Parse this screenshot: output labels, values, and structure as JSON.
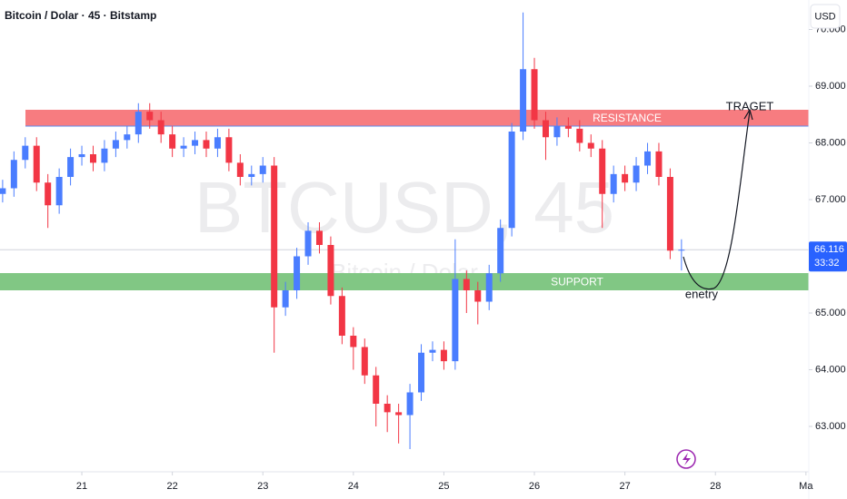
{
  "chart_data": {
    "type": "candlestick",
    "title": "Bitcoin / Dolar · 45 · Bitstamp",
    "currency": "USD",
    "watermark": "BTCUSD, 45",
    "watermark_sub": "Bitcoin / Dolar",
    "up_color": "#4a7dff",
    "down_color": "#f23645",
    "grid": false,
    "x": [
      20.125,
      20.25,
      20.375,
      20.5,
      20.625,
      20.75,
      20.875,
      21,
      21.125,
      21.25,
      21.375,
      21.5,
      21.625,
      21.75,
      21.875,
      22,
      22.125,
      22.25,
      22.375,
      22.5,
      22.625,
      22.75,
      22.875,
      23,
      23.125,
      23.25,
      23.375,
      23.5,
      23.625,
      23.75,
      23.875,
      24,
      24.125,
      24.25,
      24.375,
      24.5,
      24.625,
      24.75,
      24.875,
      25,
      25.125,
      25.25,
      25.375,
      25.5,
      25.625,
      25.75,
      25.875,
      26,
      26.125,
      26.25,
      26.375,
      26.5,
      26.625,
      26.75,
      26.875,
      27,
      27.125,
      27.25,
      27.375,
      27.5,
      27.625
    ],
    "open": [
      67100,
      67200,
      67700,
      67950,
      67300,
      66900,
      67400,
      67750,
      67800,
      67650,
      67900,
      68050,
      68150,
      68550,
      68400,
      68150,
      67900,
      67950,
      68050,
      67900,
      68100,
      67650,
      67400,
      67450,
      67600,
      65100,
      65400,
      66000,
      66450,
      66200,
      65300,
      64600,
      64400,
      63900,
      63400,
      63250,
      63200,
      63600,
      64300,
      64350,
      64150,
      65600,
      65400,
      65200,
      65700,
      66500,
      68200,
      69300,
      68400,
      68100,
      68300,
      68250,
      68000,
      67900,
      67100,
      67450,
      67300,
      67600,
      67850,
      67400,
      66100
    ],
    "high": [
      67350,
      67850,
      68100,
      68100,
      67450,
      67550,
      67900,
      67950,
      67950,
      68050,
      68200,
      68300,
      68700,
      68700,
      68550,
      68300,
      68100,
      68200,
      68200,
      68250,
      68250,
      67800,
      67600,
      67750,
      67750,
      65550,
      66150,
      66600,
      66600,
      66350,
      65450,
      64750,
      64550,
      64050,
      63550,
      63400,
      63750,
      64450,
      64500,
      64500,
      66300,
      65750,
      65550,
      65850,
      66650,
      68350,
      70300,
      69500,
      68550,
      68450,
      68450,
      68400,
      68150,
      68050,
      67600,
      67600,
      67750,
      68000,
      68000,
      67550,
      66300
    ],
    "low": [
      66950,
      67050,
      67550,
      67150,
      66500,
      66750,
      67250,
      67600,
      67500,
      67500,
      67750,
      67900,
      68000,
      68250,
      68000,
      67750,
      67750,
      67800,
      67750,
      67750,
      67500,
      67250,
      67250,
      67300,
      64300,
      64950,
      65250,
      65850,
      66050,
      65150,
      64450,
      64000,
      63750,
      63000,
      62900,
      62700,
      62600,
      63450,
      64150,
      64000,
      64000,
      65000,
      64800,
      65050,
      65550,
      66350,
      68050,
      68250,
      67700,
      67950,
      68100,
      67850,
      67750,
      66500,
      66950,
      67150,
      67150,
      67450,
      67250,
      65950,
      65750
    ],
    "close": [
      67200,
      67700,
      67950,
      67300,
      66900,
      67400,
      67750,
      67800,
      67650,
      67900,
      68050,
      68150,
      68550,
      68400,
      68150,
      67900,
      67950,
      68050,
      67900,
      68100,
      67650,
      67400,
      67450,
      67600,
      65100,
      65400,
      66000,
      66450,
      66200,
      65300,
      64600,
      64400,
      63900,
      63400,
      63250,
      63200,
      63600,
      64300,
      64350,
      64150,
      65600,
      65400,
      65200,
      65700,
      66500,
      68200,
      69300,
      68400,
      68100,
      68300,
      68250,
      68000,
      67900,
      67100,
      67450,
      67300,
      67600,
      67850,
      67400,
      66100,
      66116
    ],
    "xlim": [
      20.096,
      29.032
    ],
    "xticks": [
      21,
      22,
      23,
      24,
      25,
      26,
      27,
      28,
      {
        "value": 29,
        "label": "Ma"
      }
    ],
    "ylim": [
      62200,
      70520
    ],
    "yticks": [
      {
        "value": 63000,
        "label": "63.000"
      },
      {
        "value": 64000,
        "label": "64.000"
      },
      {
        "value": 65000,
        "label": "65.000"
      },
      {
        "value": 66000,
        "label": "66.000"
      },
      {
        "value": 67000,
        "label": "67.000"
      },
      {
        "value": 68000,
        "label": "68.000"
      },
      {
        "value": 69000,
        "label": "69.000"
      },
      {
        "value": 70000,
        "label": "70.000"
      }
    ],
    "zones": [
      {
        "label": "RESISTANCE",
        "range": [
          68296,
          68584
        ],
        "color": "#f77c80"
      },
      {
        "label": "SUPPORT",
        "range": [
          65400,
          65704
        ],
        "color": "#81c784"
      }
    ],
    "last_price": {
      "value": 66116,
      "label": "66.116"
    },
    "countdown": "33:32",
    "annotations": [
      "TRAGET",
      "enetry"
    ]
  }
}
